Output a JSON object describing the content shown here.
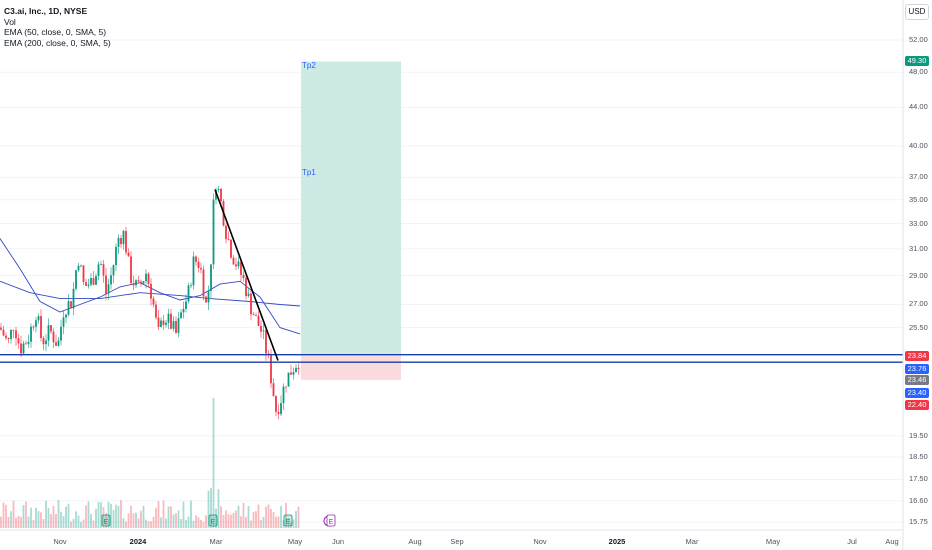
{
  "legend": {
    "symbol": "C3.ai, Inc., 1D, NYSE",
    "volume": "Vol",
    "ema50": "EMA (50, close, 0, SMA, 5)",
    "ema200": "EMA (200, close, 0, SMA, 5)"
  },
  "currency": "USD",
  "chart_data": {
    "type": "candlestick",
    "symbol": "C3.ai, Inc.",
    "interval": "1D",
    "exchange": "NYSE",
    "y_scale": "log",
    "y_ticks": [
      "52.00",
      "48.00",
      "44.00",
      "40.00",
      "37.00",
      "35.00",
      "33.00",
      "31.00",
      "29.00",
      "27.00",
      "25.50",
      "19.50",
      "18.50",
      "17.50",
      "16.60",
      "15.75"
    ],
    "y_tick_values": [
      52,
      48,
      44,
      40,
      37,
      35,
      33,
      31,
      29,
      27,
      25.5,
      19.5,
      18.5,
      17.5,
      16.6,
      15.75
    ],
    "x_ticks": [
      {
        "label": "Nov",
        "bold": false
      },
      {
        "label": "2024",
        "bold": true
      },
      {
        "label": "Mar",
        "bold": false
      },
      {
        "label": "May",
        "bold": false
      },
      {
        "label": "Jun",
        "bold": false
      },
      {
        "label": "Aug",
        "bold": false
      },
      {
        "label": "Sep",
        "bold": false
      },
      {
        "label": "Nov",
        "bold": false
      },
      {
        "label": "2025",
        "bold": true
      },
      {
        "label": "Mar",
        "bold": false
      },
      {
        "label": "May",
        "bold": false
      },
      {
        "label": "Jul",
        "bold": false
      },
      {
        "label": "Aug",
        "bold": false
      }
    ],
    "price_tags": [
      {
        "value": "49.30",
        "color": "#089981"
      },
      {
        "value": "23.84",
        "color": "#f23645"
      },
      {
        "value": "23.76",
        "color": "#2962ff"
      },
      {
        "value": "23.46",
        "color": "#787b86"
      },
      {
        "value": "23.40",
        "color": "#2962ff"
      },
      {
        "value": "22.40",
        "color": "#f23645"
      }
    ],
    "horizontal_lines": [
      23.84,
      23.4
    ],
    "position": {
      "entry": 23.76,
      "target": 49.3,
      "stop": 22.4
    },
    "annotations": [
      "Tp2",
      "Tp1"
    ],
    "trendline": {
      "from": 35.9,
      "to": 23.5
    },
    "events": [
      "E",
      "E",
      "E",
      "⚡",
      "E"
    ],
    "colors": {
      "up": "#089981",
      "down": "#f23645",
      "ema": "#3348c4",
      "hline": "#1a3ea8",
      "profit": "#cdebe4",
      "loss": "#fadadd"
    }
  }
}
